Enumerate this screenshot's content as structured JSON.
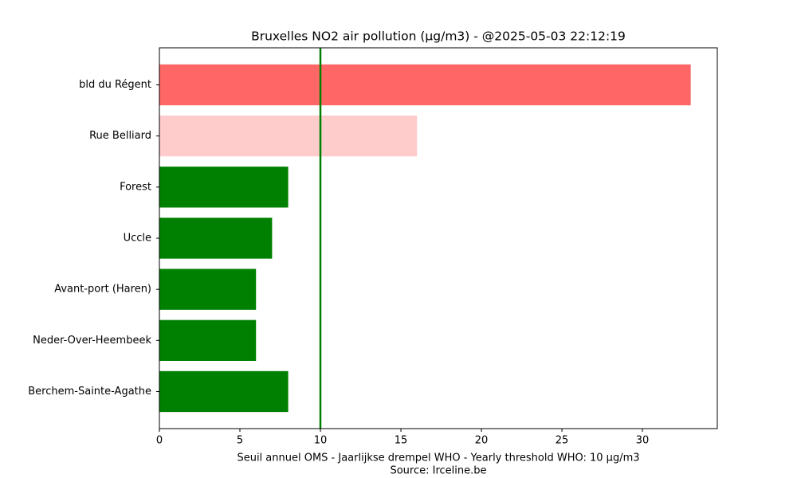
{
  "chart_data": {
    "type": "barh",
    "title": "Bruxelles NO2 air pollution (µg/m3) - @2025-05-03 22:12:19",
    "categories": [
      "bld du Régent",
      "Rue Belliard",
      "Forest",
      "Uccle",
      "Avant-port (Haren)",
      "Neder-Over-Heembeek",
      "Berchem-Sainte-Agathe"
    ],
    "values": [
      33,
      16,
      8,
      7,
      6,
      6,
      8
    ],
    "colors": [
      "#ff6666",
      "#ffcccc",
      "#008000",
      "#008000",
      "#008000",
      "#008000",
      "#008000"
    ],
    "threshold": 10,
    "threshold_color": "#008000",
    "xlim": [
      0,
      34.65
    ],
    "xticks": [
      0,
      5,
      10,
      15,
      20,
      25,
      30
    ],
    "xlabel": "Seuil annuel OMS - Jaarlijkse drempel WHO - Yearly threshold WHO: 10 µg/m3",
    "source": "Source: Irceline.be"
  }
}
